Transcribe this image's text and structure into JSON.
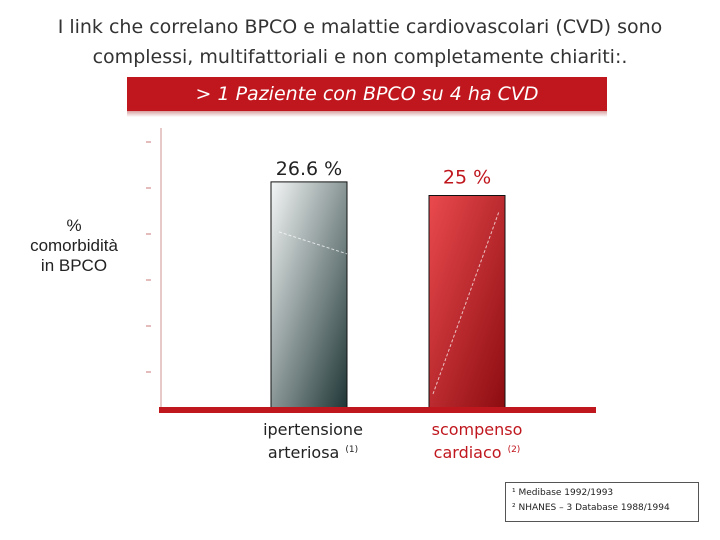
{
  "header": {
    "title_line1": "I link che correlano BPCO e malattie cardiovascolari (CVD) sono",
    "title_line2": "complessi, multifattoriali e non completamente chiariti:."
  },
  "banner": {
    "text": "> 1 Paziente con BPCO su 4 ha CVD"
  },
  "axis": {
    "ylabel_line1": "%",
    "ylabel_line2": "comorbidità",
    "ylabel_line3": "in BPCO"
  },
  "categories": {
    "cat1_line1": "ipertensione",
    "cat1_line2": "arteriosa",
    "cat1_sup": "(1)",
    "cat2_line1": "scompenso",
    "cat2_line2": "cardiaco",
    "cat2_sup": "(2)"
  },
  "references": {
    "ref1": "¹ Medibase 1992/1993",
    "ref2": "² NHANES – 3  Database  1988/1994"
  },
  "colors": {
    "accent_red": "#c0171e",
    "bar1_gradient": [
      "#f4f6f6",
      "#1f3636"
    ],
    "bar2_gradient": [
      "#ea4a4e",
      "#8c0c10"
    ]
  },
  "chart_data": {
    "type": "bar",
    "categories": [
      "ipertensione arteriosa (1)",
      "scompenso cardiaco (2)"
    ],
    "values": [
      26.6,
      25
    ],
    "value_labels": [
      "26.6 %",
      "25 %"
    ],
    "title": "> 1 Paziente con BPCO su 4 ha CVD",
    "xlabel": "",
    "ylabel": "% comorbidità in BPCO",
    "ylim": [
      0,
      32
    ],
    "grid": false,
    "legend": "none"
  }
}
